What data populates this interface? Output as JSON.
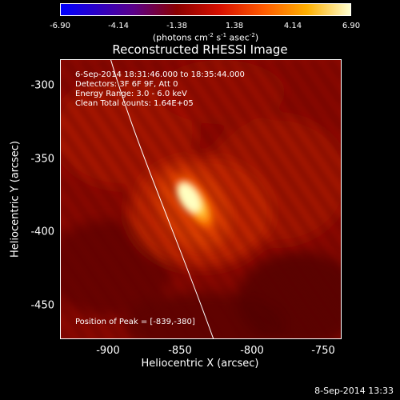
{
  "colorbar": {
    "ticks": [
      "-6.90",
      "-4.14",
      "-1.38",
      "1.38",
      "4.14",
      "6.90"
    ],
    "unit": "(photons cm",
    "unit_exp1": "-2",
    "unit_mid": " s",
    "unit_exp2": "-1",
    "unit_mid2": " asec",
    "unit_exp3": "-2",
    "unit_end": ")"
  },
  "title": "Reconstructed RHESSI Image",
  "info": {
    "time_range": "6-Sep-2014 18:31:46.000 to 18:35:44.000",
    "detectors": "Detectors: 3F 6F 9F, Att 0",
    "energy": "Energy Range: 3.0 - 6.0 keV",
    "clean": "Clean    Total counts: 1.64E+05"
  },
  "peak_text": "Position of Peak = [-839,-380]",
  "y_ticks": [
    "-300",
    "-350",
    "-400",
    "-450"
  ],
  "x_ticks": [
    "-900",
    "-850",
    "-800",
    "-750"
  ],
  "y_label": "Heliocentric Y (arcsec)",
  "x_label": "Heliocentric X (arcsec)",
  "timestamp": "8-Sep-2014 13:33",
  "colors": {
    "background": "#000000",
    "foreground": "#ffffff",
    "image_base": "#8a0000",
    "peak": "#ffffc0"
  }
}
